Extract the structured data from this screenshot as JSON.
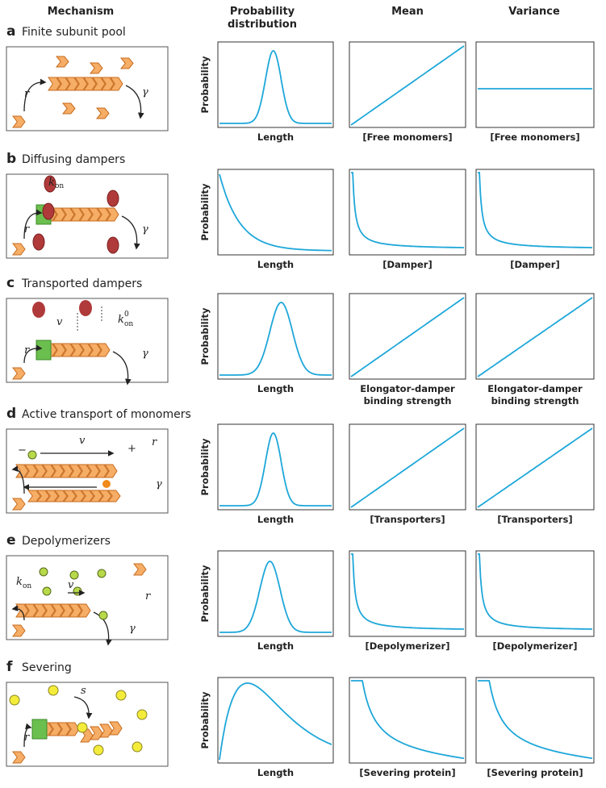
{
  "headers": {
    "mechanism": "Mechanism",
    "distribution": [
      "Probability",
      "distribution"
    ],
    "mean": "Mean",
    "variance": "Variance"
  },
  "rows": [
    {
      "letter": "a",
      "title": "Finite subunit pool",
      "y_label": "Probability",
      "x_labels": [
        "Length",
        "[Free monomers]",
        "[Free monomers]"
      ],
      "symbols": [
        "r",
        "γ"
      ]
    },
    {
      "letter": "b",
      "title": "Diffusing dampers",
      "y_label": "Probability",
      "x_labels": [
        "Length",
        "[Damper]",
        "[Damper]"
      ],
      "symbols": [
        "k",
        "on",
        "r",
        "γ"
      ]
    },
    {
      "letter": "c",
      "title": "Transported dampers",
      "y_label": "Probability",
      "x_labels": [
        "Length",
        [
          "Elongator-damper",
          "binding strength"
        ],
        [
          "Elongator-damper",
          "binding strength"
        ]
      ],
      "symbols": [
        "v",
        "k",
        "on",
        "0",
        "r",
        "γ"
      ]
    },
    {
      "letter": "d",
      "title": "Active transport of monomers",
      "y_label": "Probability",
      "x_labels": [
        "Length",
        "[Transporters]",
        "[Transporters]"
      ],
      "symbols": [
        "−",
        "v",
        "+",
        "r",
        "γ"
      ]
    },
    {
      "letter": "e",
      "title": "Depolymerizers",
      "y_label": "Probability",
      "x_labels": [
        "Length",
        "[Depolymerizer]",
        "[Depolymerizer]"
      ],
      "symbols": [
        "k",
        "on",
        "v",
        "r",
        "γ"
      ]
    },
    {
      "letter": "f",
      "title": "Severing",
      "y_label": "Probability",
      "x_labels": [
        "Length",
        "[Severing protein]",
        "[Severing protein]"
      ],
      "symbols": [
        "s",
        "r"
      ]
    }
  ]
}
